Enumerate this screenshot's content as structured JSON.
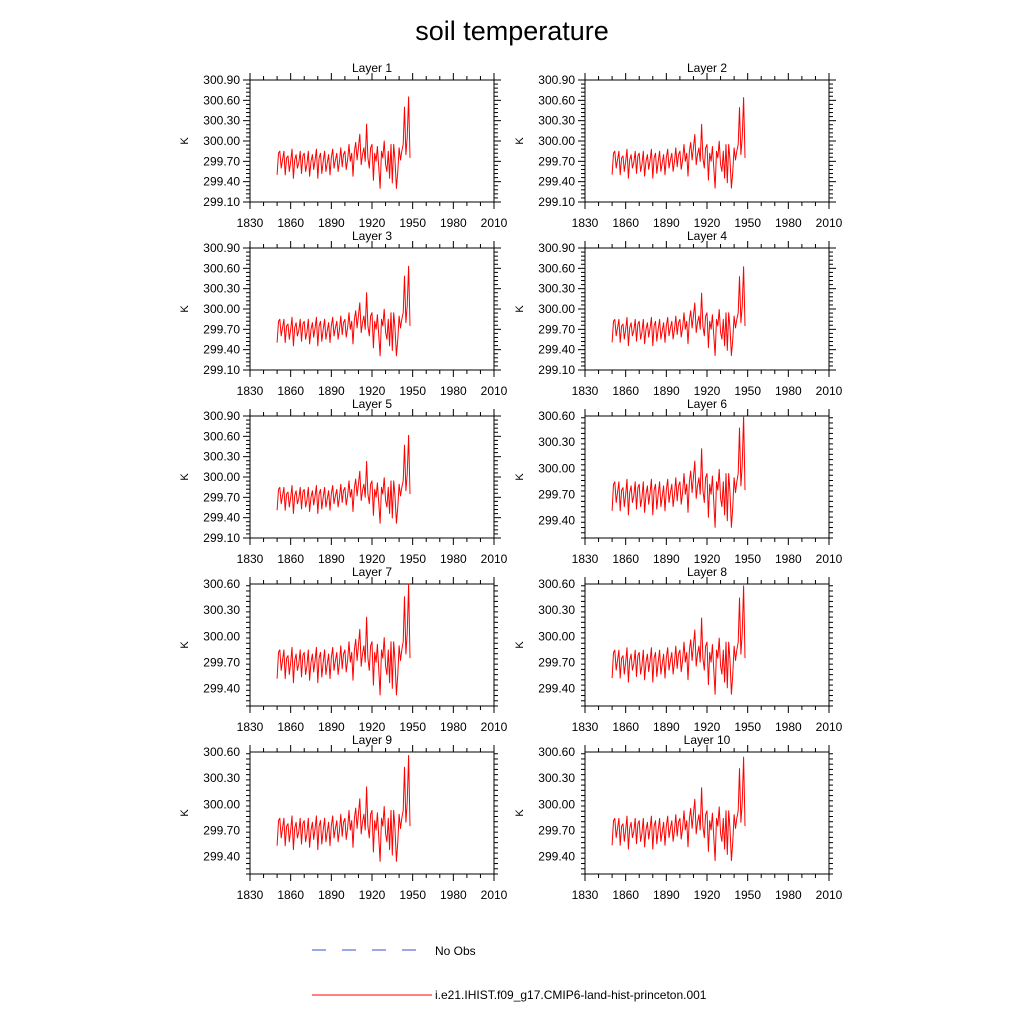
{
  "title": "soil temperature",
  "legend": [
    {
      "label": "No Obs",
      "color": "#3b4fd6",
      "style": "dashed"
    },
    {
      "label": "i.e21.IHIST.f09_g17.CMIP6-land-hist-princeton.001",
      "color": "#ff0000",
      "style": "solid"
    }
  ],
  "chart_data": [
    {
      "type": "line",
      "title": "Layer 1",
      "ylabel": "K",
      "xlim": [
        1830,
        2010
      ],
      "ylim": [
        299.1,
        300.9
      ],
      "xticks": [
        1830,
        1860,
        1890,
        1920,
        1950,
        1980,
        2010
      ],
      "yticks": [
        "299.10",
        "299.40",
        "299.70",
        "300.00",
        "300.30",
        "300.60",
        "300.90"
      ],
      "series": [
        {
          "x_start": 1850,
          "x_step": 1,
          "amplitude": 1.0,
          "values": [
            299.5,
            299.82,
            299.85,
            299.6,
            299.72,
            299.85,
            299.5,
            299.75,
            299.78,
            299.55,
            299.7,
            299.88,
            299.45,
            299.72,
            299.8,
            299.6,
            299.68,
            299.85,
            299.52,
            299.78,
            299.82,
            299.55,
            299.65,
            299.85,
            299.48,
            299.7,
            299.8,
            299.58,
            299.72,
            299.88,
            299.45,
            299.75,
            299.82,
            299.52,
            299.7,
            299.85,
            299.55,
            299.68,
            299.8,
            299.5,
            299.75,
            299.88,
            299.6,
            299.72,
            299.82,
            299.55,
            299.7,
            299.9,
            299.62,
            299.8,
            299.85,
            299.58,
            299.72,
            299.95,
            299.7,
            299.82,
            299.48,
            299.85,
            299.98,
            299.72,
            299.9,
            300.1,
            299.65,
            299.8,
            299.9,
            299.7,
            300.25,
            299.75,
            299.6,
            299.9,
            299.95,
            299.42,
            299.82,
            299.7,
            299.92,
            299.6,
            299.3,
            299.85,
            299.75,
            300.0,
            299.65,
            299.55,
            299.85,
            299.45,
            299.95,
            299.38,
            299.95,
            299.72,
            299.3,
            299.55,
            299.9,
            299.72,
            299.85,
            299.95,
            300.5,
            299.8,
            300.05,
            300.65,
            299.75
          ]
        }
      ]
    },
    {
      "type": "line",
      "title": "Layer 2",
      "ylabel": "K",
      "xlim": [
        1830,
        2010
      ],
      "ylim": [
        299.1,
        300.9
      ],
      "xticks": [
        1830,
        1860,
        1890,
        1920,
        1950,
        1980,
        2010
      ],
      "yticks": [
        "299.10",
        "299.40",
        "299.70",
        "300.00",
        "300.30",
        "300.60",
        "300.90"
      ],
      "series": [
        {
          "x_start": 1850,
          "x_step": 1,
          "amplitude": 0.99
        }
      ]
    },
    {
      "type": "line",
      "title": "Layer 3",
      "ylabel": "K",
      "xlim": [
        1830,
        2010
      ],
      "ylim": [
        299.1,
        300.9
      ],
      "xticks": [
        1830,
        1860,
        1890,
        1920,
        1950,
        1980,
        2010
      ],
      "yticks": [
        "299.10",
        "299.40",
        "299.70",
        "300.00",
        "300.30",
        "300.60",
        "300.90"
      ],
      "series": [
        {
          "x_start": 1850,
          "x_step": 1,
          "amplitude": 0.98
        }
      ]
    },
    {
      "type": "line",
      "title": "Layer 4",
      "ylabel": "K",
      "xlim": [
        1830,
        2010
      ],
      "ylim": [
        299.1,
        300.9
      ],
      "xticks": [
        1830,
        1860,
        1890,
        1920,
        1950,
        1980,
        2010
      ],
      "yticks": [
        "299.10",
        "299.40",
        "299.70",
        "300.00",
        "300.30",
        "300.60",
        "300.90"
      ],
      "series": [
        {
          "x_start": 1850,
          "x_step": 1,
          "amplitude": 0.97
        }
      ]
    },
    {
      "type": "line",
      "title": "Layer 5",
      "ylabel": "K",
      "xlim": [
        1830,
        2010
      ],
      "ylim": [
        299.1,
        300.9
      ],
      "xticks": [
        1830,
        1860,
        1890,
        1920,
        1950,
        1980,
        2010
      ],
      "yticks": [
        "299.10",
        "299.40",
        "299.70",
        "300.00",
        "300.30",
        "300.60",
        "300.90"
      ],
      "series": [
        {
          "x_start": 1850,
          "x_step": 1,
          "amplitude": 0.96
        }
      ]
    },
    {
      "type": "line",
      "title": "Layer 6",
      "ylabel": "K",
      "xlim": [
        1830,
        2010
      ],
      "ylim": [
        299.2,
        300.6
      ],
      "xticks": [
        1830,
        1860,
        1890,
        1920,
        1950,
        1980,
        2010
      ],
      "yticks": [
        "299.40",
        "299.70",
        "300.00",
        "300.30",
        "300.60"
      ],
      "series": [
        {
          "x_start": 1850,
          "x_step": 1,
          "amplitude": 0.95
        }
      ]
    },
    {
      "type": "line",
      "title": "Layer 7",
      "ylabel": "K",
      "xlim": [
        1830,
        2010
      ],
      "ylim": [
        299.2,
        300.6
      ],
      "xticks": [
        1830,
        1860,
        1890,
        1920,
        1950,
        1980,
        2010
      ],
      "yticks": [
        "299.40",
        "299.70",
        "300.00",
        "300.30",
        "300.60"
      ],
      "series": [
        {
          "x_start": 1850,
          "x_step": 1,
          "amplitude": 0.94
        }
      ]
    },
    {
      "type": "line",
      "title": "Layer 8",
      "ylabel": "K",
      "xlim": [
        1830,
        2010
      ],
      "ylim": [
        299.2,
        300.6
      ],
      "xticks": [
        1830,
        1860,
        1890,
        1920,
        1950,
        1980,
        2010
      ],
      "yticks": [
        "299.40",
        "299.70",
        "300.00",
        "300.30",
        "300.60"
      ],
      "series": [
        {
          "x_start": 1850,
          "x_step": 1,
          "amplitude": 0.92
        }
      ]
    },
    {
      "type": "line",
      "title": "Layer 9",
      "ylabel": "K",
      "xlim": [
        1830,
        2010
      ],
      "ylim": [
        299.2,
        300.6
      ],
      "xticks": [
        1830,
        1860,
        1890,
        1920,
        1950,
        1980,
        2010
      ],
      "yticks": [
        "299.40",
        "299.70",
        "300.00",
        "300.30",
        "300.60"
      ],
      "series": [
        {
          "x_start": 1850,
          "x_step": 1,
          "amplitude": 0.9
        }
      ]
    },
    {
      "type": "line",
      "title": "Layer 10",
      "ylabel": "K",
      "xlim": [
        1830,
        2010
      ],
      "ylim": [
        299.2,
        300.6
      ],
      "xticks": [
        1830,
        1860,
        1890,
        1920,
        1950,
        1980,
        2010
      ],
      "yticks": [
        "299.40",
        "299.70",
        "300.00",
        "300.30",
        "300.60"
      ],
      "series": [
        {
          "x_start": 1850,
          "x_step": 1,
          "amplitude": 0.88
        }
      ]
    }
  ]
}
